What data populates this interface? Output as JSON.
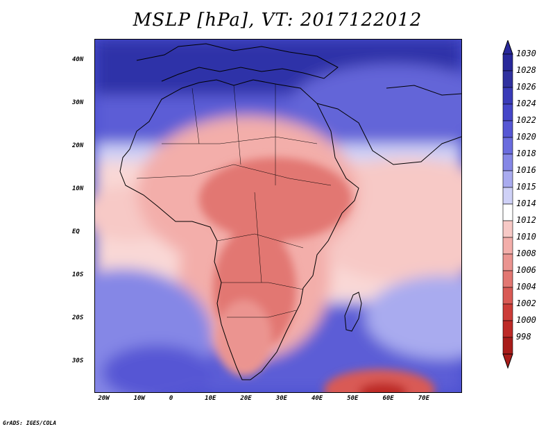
{
  "title": "MSLP [hPa], VT: 2017122012",
  "credit": "GrADS: IGES/COLA",
  "map": {
    "lon_range": [
      -23,
      80
    ],
    "lat_range": [
      -37,
      45
    ],
    "lon_ticks": [
      {
        "value": -20,
        "label": "20W"
      },
      {
        "value": -10,
        "label": "10W"
      },
      {
        "value": 0,
        "label": "0"
      },
      {
        "value": 10,
        "label": "10E"
      },
      {
        "value": 20,
        "label": "20E"
      },
      {
        "value": 30,
        "label": "30E"
      },
      {
        "value": 40,
        "label": "40E"
      },
      {
        "value": 50,
        "label": "50E"
      },
      {
        "value": 60,
        "label": "60E"
      },
      {
        "value": 70,
        "label": "70E"
      }
    ],
    "lat_ticks": [
      {
        "value": 40,
        "label": "40N"
      },
      {
        "value": 30,
        "label": "30N"
      },
      {
        "value": 20,
        "label": "20N"
      },
      {
        "value": 10,
        "label": "10N"
      },
      {
        "value": 0,
        "label": "EQ"
      },
      {
        "value": -10,
        "label": "10S"
      },
      {
        "value": -20,
        "label": "20S"
      },
      {
        "value": -30,
        "label": "30S"
      }
    ]
  },
  "colorbar": {
    "labels": [
      "1030",
      "1028",
      "1026",
      "1024",
      "1022",
      "1020",
      "1018",
      "1016",
      "1015",
      "1014",
      "1012",
      "1010",
      "1008",
      "1006",
      "1004",
      "1002",
      "1000",
      "998"
    ],
    "colors": [
      "#28289a",
      "#30319f",
      "#3a3bb8",
      "#4546c8",
      "#5657d4",
      "#6a6cde",
      "#8587e6",
      "#a9abef",
      "#cfd1f7",
      "#ffffff",
      "#f7c9c6",
      "#f3aeaa",
      "#eb9490",
      "#e27772",
      "#d95a55",
      "#cc3c38",
      "#bd2a27",
      "#a81c1a"
    ]
  }
}
